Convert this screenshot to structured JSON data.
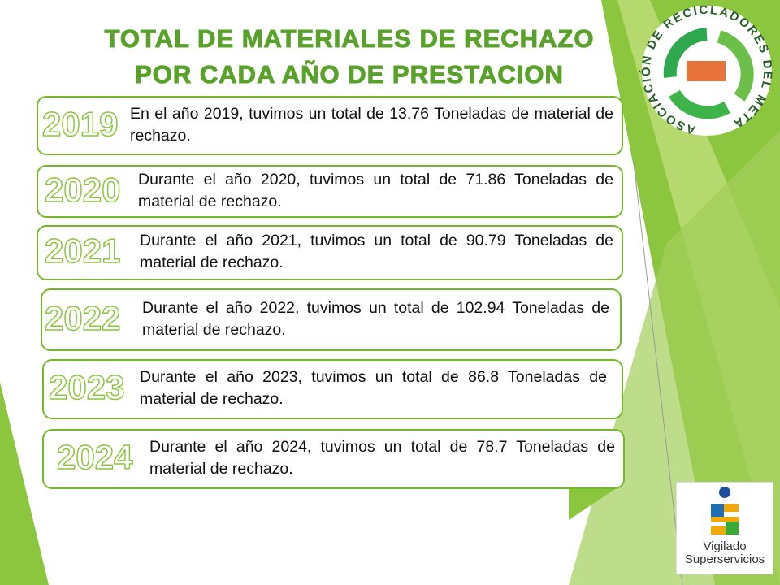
{
  "header": {
    "title_lines": [
      "TOTAL DE MATERIALES DE RECHAZO",
      "POR CADA AÑO DE PRESTACION"
    ]
  },
  "logo": {
    "text": "ASOCIACIÓN DE RECICLADORES DEL META"
  },
  "items": [
    {
      "year": "2019",
      "text": "En el año 2019, tuvimos un total de  13.76 Toneladas de material de rechazo."
    },
    {
      "year": "2020",
      "text": "Durante el año 2020, tuvimos un total de 71.86 Toneladas de material de rechazo."
    },
    {
      "year": "2021",
      "text": "Durante el año 2021, tuvimos un total de 90.79 Toneladas de material de rechazo."
    },
    {
      "year": "2022",
      "text": "Durante el año 2022, tuvimos un total de 102.94 Toneladas de material de rechazo."
    },
    {
      "year": "2023",
      "text": "Durante el año 2023, tuvimos un total de 86.8 Toneladas de material de rechazo."
    },
    {
      "year": "2024",
      "text": "Durante el año 2024, tuvimos un total de 78.7 Toneladas de material de rechazo."
    }
  ],
  "badge": {
    "line1": "Vigilado",
    "line2": "Superservicios"
  }
}
